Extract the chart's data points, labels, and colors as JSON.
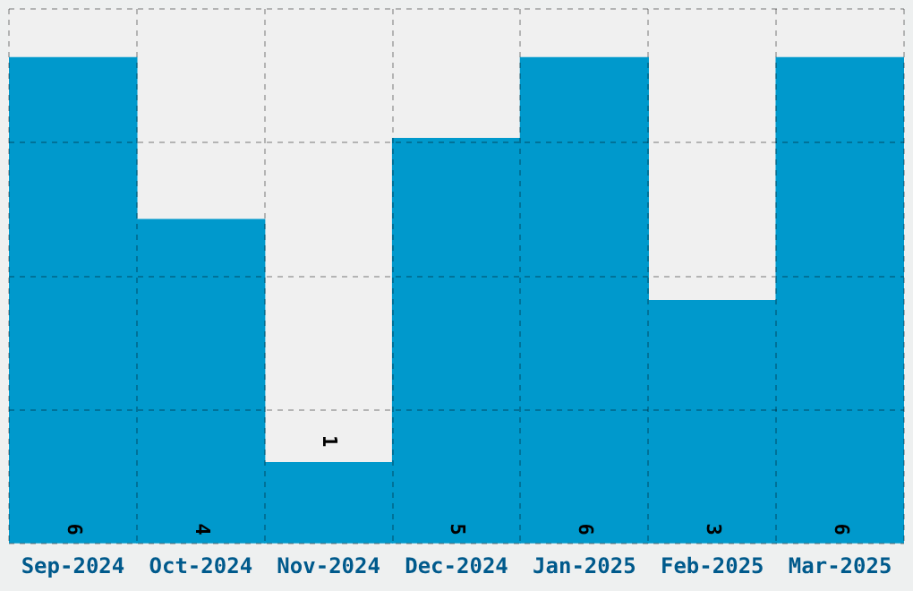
{
  "chart_data": {
    "type": "bar",
    "categories": [
      "Sep-2024",
      "Oct-2024",
      "Nov-2024",
      "Dec-2024",
      "Jan-2025",
      "Feb-2025",
      "Mar-2025"
    ],
    "values": [
      6,
      4,
      1,
      5,
      6,
      3,
      6
    ],
    "color": "#0099cc",
    "ylim": [
      0,
      6.6
    ],
    "yticks": [
      {
        "value": 0,
        "label": null
      },
      {
        "value": 1.65,
        "label": null
      },
      {
        "value": 3.3,
        "label": null
      },
      {
        "value": 4.95,
        "label": null
      },
      {
        "value": 6.6,
        "label": null
      }
    ],
    "tick_labels": "x",
    "grid": true,
    "legend": false,
    "data_labels": true
  }
}
